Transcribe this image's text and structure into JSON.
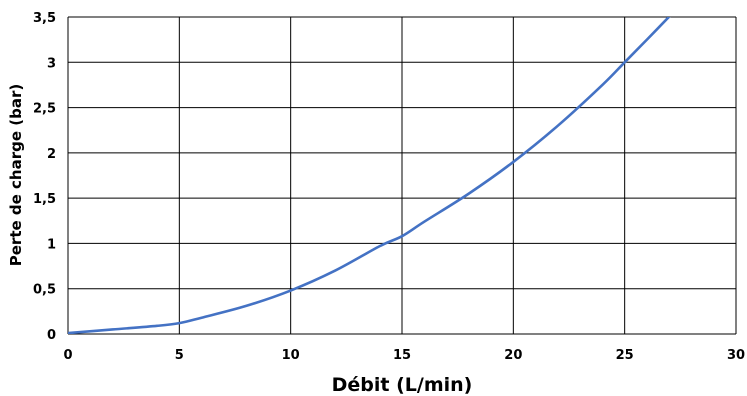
{
  "chart_data": {
    "type": "line",
    "title": "",
    "xlabel": "Débit (L/min)",
    "ylabel": "Perte de charge (bar)",
    "xlim": [
      0,
      30
    ],
    "ylim": [
      0,
      3.5
    ],
    "xticks": [
      "0",
      "5",
      "10",
      "15",
      "20",
      "25",
      "30"
    ],
    "yticks": [
      "0",
      "0,5",
      "1",
      "1,5",
      "2",
      "2,5",
      "3",
      "3,5"
    ],
    "grid": true,
    "legend": "none",
    "series": [
      {
        "color": "#4472c4",
        "points": [
          [
            0,
            0.01
          ],
          [
            2,
            0.05
          ],
          [
            4,
            0.09
          ],
          [
            5,
            0.12
          ],
          [
            6,
            0.18
          ],
          [
            8,
            0.31
          ],
          [
            10,
            0.48
          ],
          [
            12,
            0.7
          ],
          [
            14,
            0.97
          ],
          [
            15,
            1.08
          ],
          [
            16,
            1.24
          ],
          [
            18,
            1.55
          ],
          [
            20,
            1.9
          ],
          [
            22,
            2.3
          ],
          [
            24,
            2.75
          ],
          [
            25,
            3.0
          ],
          [
            26,
            3.25
          ],
          [
            27.1,
            3.53
          ]
        ]
      }
    ]
  }
}
